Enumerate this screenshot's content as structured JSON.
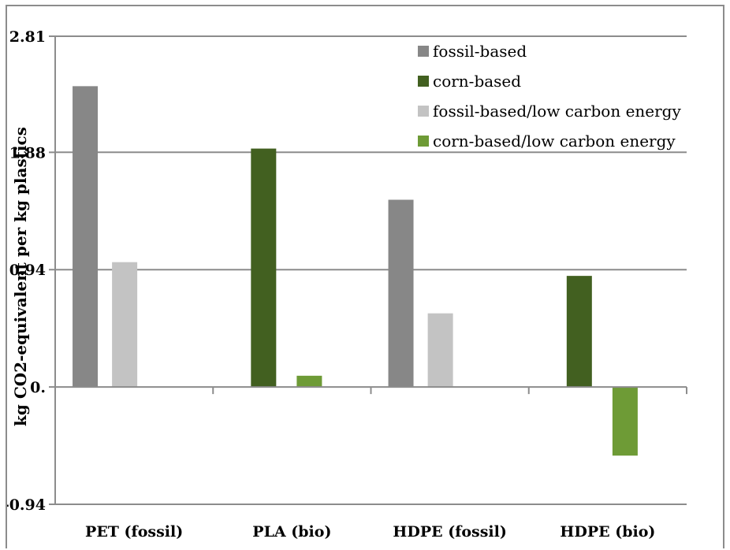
{
  "chart_data": {
    "type": "bar",
    "ylabel": "kg CO2-equivalent per kg plastics",
    "xlabel": "",
    "categories": [
      "PET (fossil)",
      "PLA (bio)",
      "HDPE (fossil)",
      "HDPE (bio)"
    ],
    "y_ticks": [
      {
        "value": -0.94,
        "label": "-0.94"
      },
      {
        "value": 0,
        "label": "0."
      },
      {
        "value": 0.94,
        "label": "0.94"
      },
      {
        "value": 1.88,
        "label": "1.88"
      },
      {
        "value": 2.81,
        "label": "2.81"
      }
    ],
    "ylim": [
      -0.94,
      2.81
    ],
    "grid": true,
    "legend_position": "top-right",
    "series": [
      {
        "name": "fossil-based",
        "color": "#878787",
        "values": [
          2.41,
          0,
          1.5,
          0
        ]
      },
      {
        "name": "corn-based",
        "color": "#426020",
        "values": [
          0,
          1.91,
          0,
          0.89
        ]
      },
      {
        "name": "fossil-based/low carbon energy",
        "color": "#c3c3c3",
        "values": [
          1.0,
          0,
          0.59,
          0
        ]
      },
      {
        "name": "corn-based/low carbon energy",
        "color": "#6e9b36",
        "values": [
          0,
          0.09,
          0,
          -0.55
        ]
      }
    ]
  }
}
